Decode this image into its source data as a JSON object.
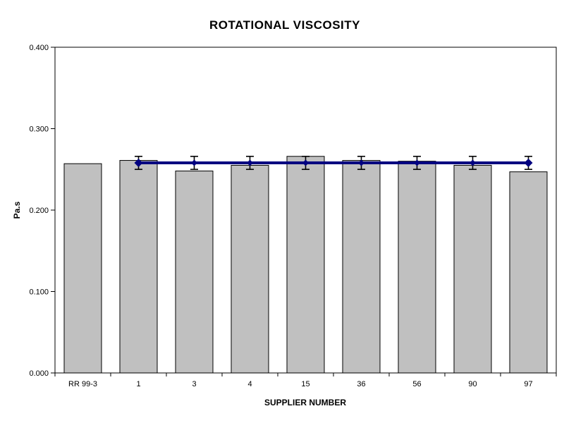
{
  "chart_data": {
    "type": "bar",
    "title": "ROTATIONAL VISCOSITY",
    "xlabel": "SUPPLIER NUMBER",
    "ylabel": "Pa.s",
    "ylim": [
      0,
      0.4
    ],
    "ytick_labels": [
      "0.000",
      "0.100",
      "0.200",
      "0.300",
      "0.400"
    ],
    "grid": false,
    "legend": "none",
    "categories": [
      "RR 99-3",
      "1",
      "3",
      "4",
      "15",
      "36",
      "56",
      "90",
      "97"
    ],
    "series": [
      {
        "name": "viscosity-bars",
        "type": "bar",
        "fill_color": "#c0c0c0",
        "border_color": "#000000",
        "values": [
          0.257,
          0.261,
          0.248,
          0.255,
          0.266,
          0.261,
          0.26,
          0.255,
          0.247
        ]
      },
      {
        "name": "reference-line",
        "type": "line",
        "color": "#000080",
        "marker": "diamond",
        "category_indices": [
          1,
          2,
          3,
          4,
          5,
          6,
          7,
          8
        ],
        "values": [
          0.258,
          0.258,
          0.258,
          0.258,
          0.258,
          0.258,
          0.258,
          0.258
        ],
        "error": [
          0.008,
          0.008,
          0.008,
          0.008,
          0.008,
          0.008,
          0.008,
          0.008
        ],
        "error_color": "#000000"
      }
    ]
  },
  "colors": {
    "background": "#ffffff",
    "axis": "#000000",
    "bar_fill": "#c0c0c0",
    "line": "#000080"
  }
}
